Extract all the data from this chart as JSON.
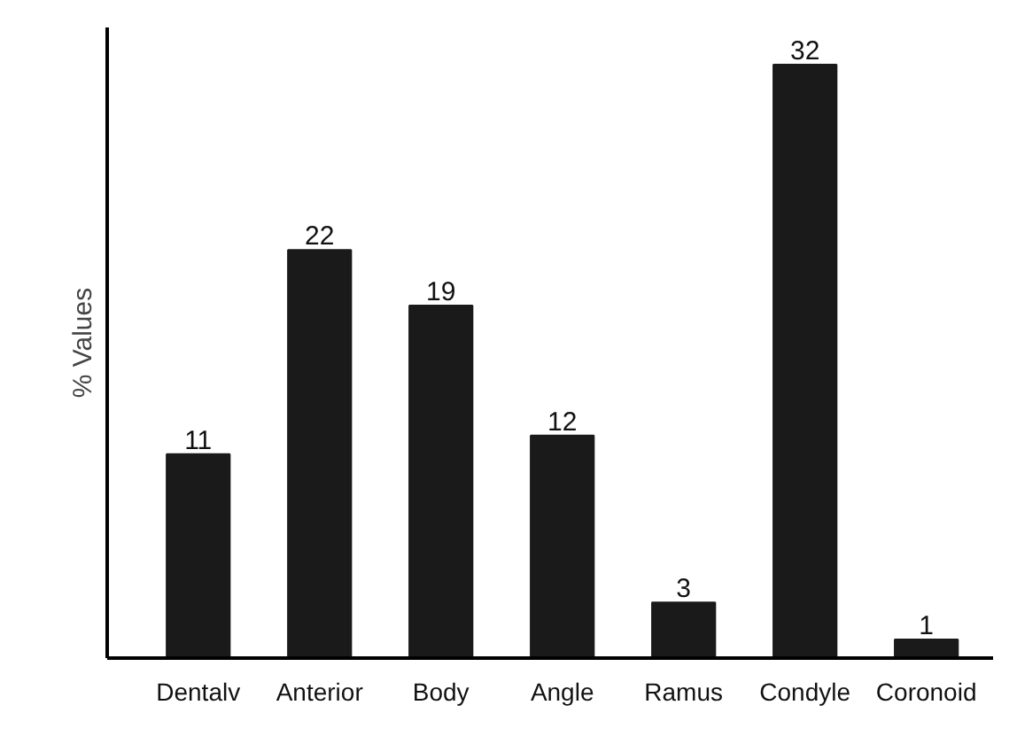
{
  "chart_data": {
    "type": "bar",
    "ylabel": "% Values",
    "categories": [
      "Dentalv",
      "Anterior",
      "Body",
      "Angle",
      "Ramus",
      "Condyle",
      "Coronoid"
    ],
    "values": [
      11,
      22,
      19,
      12,
      3,
      32,
      1
    ],
    "color": "#1a1a1a",
    "ylim": [
      0,
      34
    ],
    "tick_labels": "x",
    "data_labels": true
  }
}
